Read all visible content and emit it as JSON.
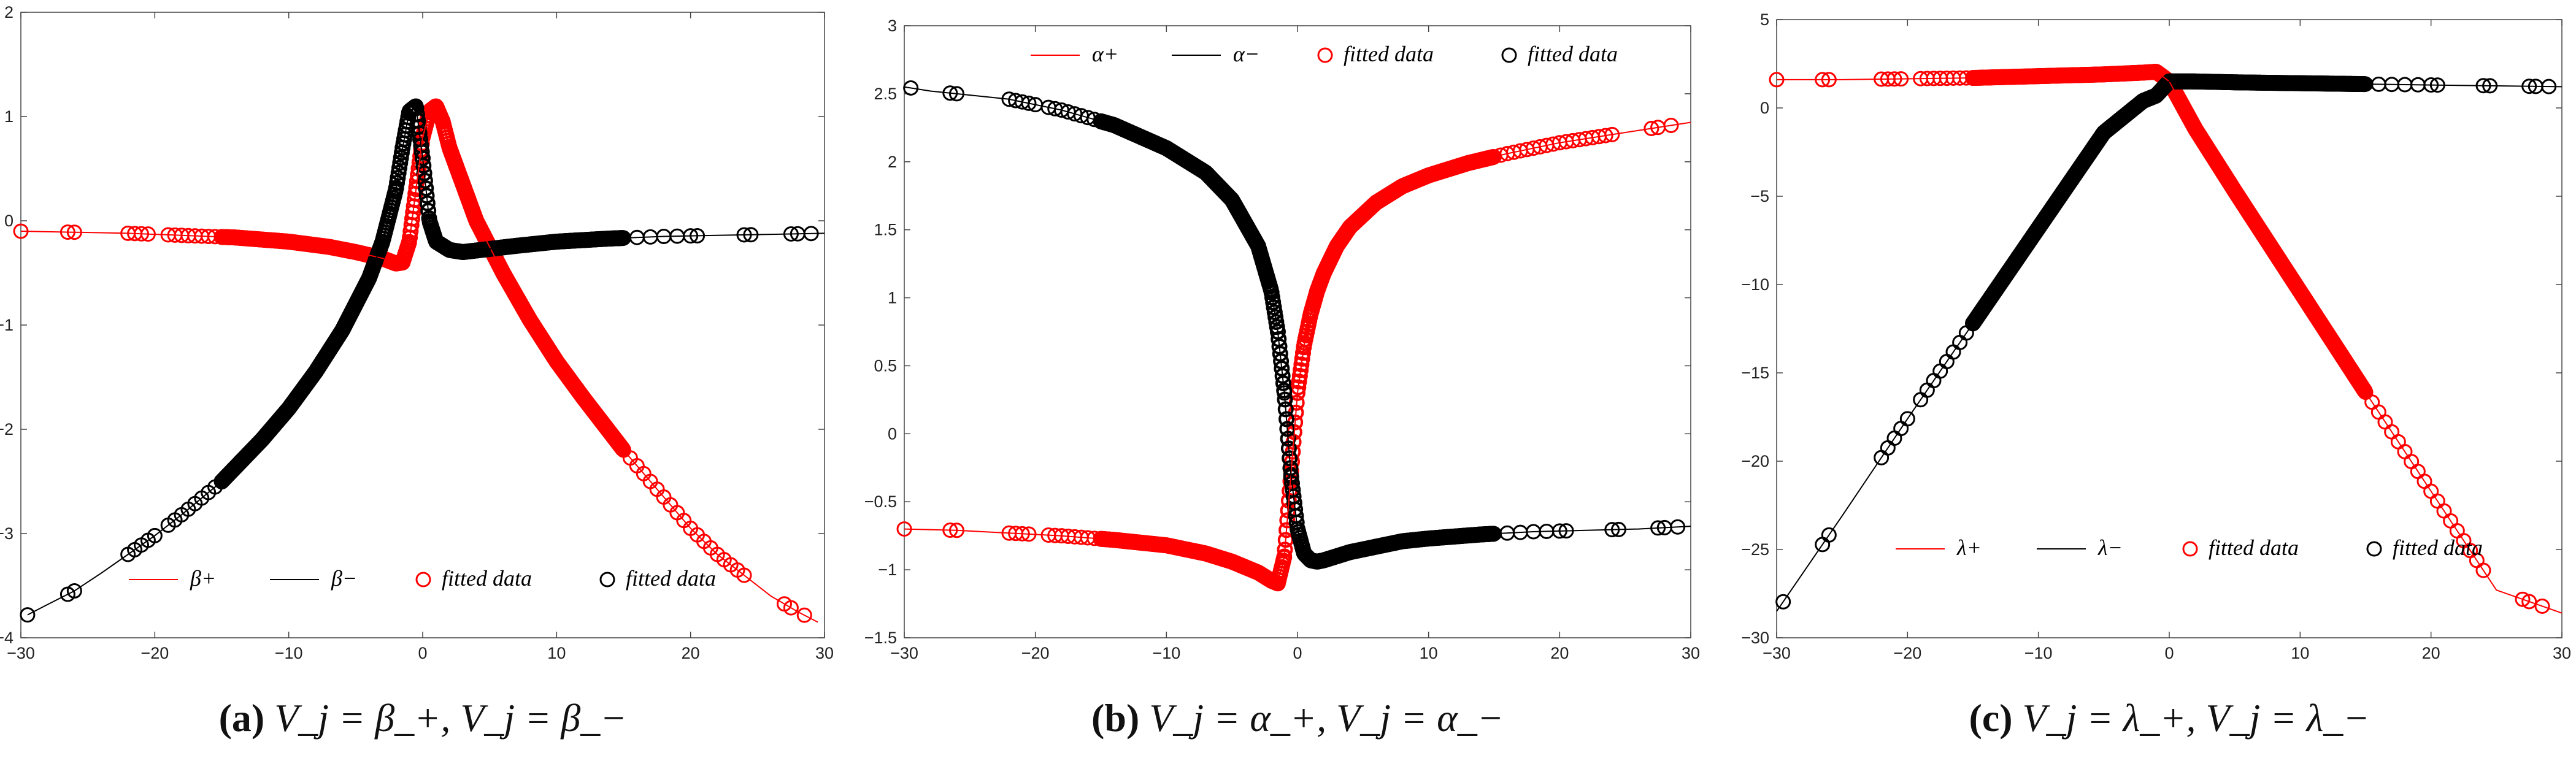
{
  "figure": {
    "panels": [
      {
        "caption_letter": "(a)",
        "caption_math": "V_j = β_+, V_j = β_−",
        "legend_labels": [
          "β+",
          "β−",
          "fitted data",
          "fitted data"
        ],
        "colors": {
          "plus": "#ff0000",
          "minus": "#000000"
        }
      },
      {
        "caption_letter": "(b)",
        "caption_math": "V_j = α_+, V_j = α_−",
        "legend_labels": [
          "α+",
          "α−",
          "fitted data",
          "fitted data"
        ],
        "colors": {
          "plus": "#ff0000",
          "minus": "#000000"
        }
      },
      {
        "caption_letter": "(c)",
        "caption_math": "V_j = λ_+, V_j = λ_−",
        "legend_labels": [
          "λ+",
          "λ−",
          "fitted data",
          "fitted data"
        ],
        "colors": {
          "plus": "#ff0000",
          "minus": "#000000"
        }
      }
    ]
  },
  "chart_data": [
    {
      "type": "line",
      "xlim": [
        -30,
        30
      ],
      "ylim": [
        -4,
        2
      ],
      "xticks": [
        -30,
        -20,
        -10,
        0,
        10,
        20,
        30
      ],
      "yticks": [
        -4,
        -3,
        -2,
        -1,
        0,
        1,
        2
      ],
      "legend_position": "bottom",
      "series": [
        {
          "name": "β+",
          "color": "#ff0000",
          "x": [
            -30,
            -26,
            -22,
            -18,
            -14,
            -10,
            -7,
            -5,
            -3,
            -2,
            -1.5,
            -1,
            -0.5,
            0,
            0.5,
            1,
            1.5,
            2,
            3,
            4,
            6,
            8,
            10,
            12,
            15,
            18,
            20,
            22,
            24,
            26,
            28,
            29.5
          ],
          "y": [
            -0.1,
            -0.11,
            -0.12,
            -0.14,
            -0.16,
            -0.2,
            -0.25,
            -0.3,
            -0.36,
            -0.41,
            -0.4,
            -0.2,
            0.3,
            0.8,
            1.05,
            1.1,
            0.95,
            0.7,
            0.35,
            0.0,
            -0.5,
            -0.95,
            -1.35,
            -1.7,
            -2.2,
            -2.65,
            -2.95,
            -3.2,
            -3.4,
            -3.6,
            -3.75,
            -3.85
          ]
        },
        {
          "name": "β−",
          "color": "#000000",
          "x": [
            -29.5,
            -28,
            -26,
            -24,
            -22,
            -20,
            -18,
            -15,
            -12,
            -10,
            -8,
            -6,
            -4,
            -3,
            -2,
            -1.5,
            -1,
            -0.5,
            0,
            0.5,
            1,
            2,
            3,
            5,
            7,
            10,
            14,
            18,
            22,
            26,
            30
          ],
          "y": [
            -3.78,
            -3.68,
            -3.55,
            -3.38,
            -3.2,
            -3.02,
            -2.82,
            -2.5,
            -2.1,
            -1.8,
            -1.45,
            -1.05,
            -0.55,
            -0.2,
            0.3,
            0.7,
            1.05,
            1.1,
            0.6,
            0.0,
            -0.2,
            -0.28,
            -0.3,
            -0.27,
            -0.24,
            -0.2,
            -0.17,
            -0.15,
            -0.14,
            -0.13,
            -0.12
          ]
        }
      ],
      "fitted_plus_x": [
        -30,
        -26.5,
        -26,
        -22,
        -21.5,
        -21,
        -20.5,
        -19,
        -18.5,
        -18,
        -17.5,
        -17,
        -16.5,
        -16,
        -15.5,
        -15,
        -14.5,
        -14,
        -13.5,
        -13,
        -12,
        -11,
        -10,
        -9,
        -8,
        -7,
        -6,
        -5,
        -4,
        -3,
        -2.5,
        -2,
        -1.5,
        -1,
        -0.5,
        0,
        0.5,
        1,
        1.5,
        2,
        2.5,
        3,
        3.5,
        4,
        5,
        6,
        7,
        8,
        9,
        10,
        11,
        12,
        13,
        14,
        15,
        15.5,
        16,
        16.5,
        17,
        17.5,
        18,
        18.5,
        19,
        19.5,
        20,
        20.5,
        21,
        21.5,
        22,
        22.5,
        23,
        23.5,
        24,
        27,
        27.5,
        28.5
      ],
      "fitted_minus_x": [
        -29.5,
        -26.5,
        -26,
        -22,
        -21.5,
        -21,
        -20.5,
        -20,
        -19,
        -18.5,
        -18,
        -17.5,
        -17,
        -16.5,
        -16,
        -15.5,
        -15,
        -14.5,
        -14,
        -13,
        -12,
        -11,
        -10,
        -9,
        -8,
        -7,
        -6,
        -5,
        -4,
        -3,
        -2.5,
        -2,
        -1.5,
        -1,
        -0.5,
        0,
        0.5,
        1,
        1.5,
        2,
        3,
        4,
        5,
        6,
        7,
        8,
        9,
        10,
        11,
        12,
        13,
        14,
        15,
        16,
        17,
        18,
        19,
        20,
        20.5,
        24,
        24.5,
        27.5,
        28,
        29
      ]
    },
    {
      "type": "line",
      "xlim": [
        -30,
        30
      ],
      "ylim": [
        -1.5,
        3
      ],
      "xticks": [
        -30,
        -20,
        -10,
        0,
        10,
        20,
        30
      ],
      "yticks": [
        -1.5,
        -1,
        -0.5,
        0,
        0.5,
        1,
        1.5,
        2,
        2.5,
        3
      ],
      "legend_position": "top",
      "series": [
        {
          "name": "α+",
          "color": "#ff0000",
          "x": [
            -30,
            -26,
            -22,
            -18,
            -14,
            -10,
            -7,
            -5,
            -3,
            -2,
            -1.5,
            -1,
            -0.5,
            0,
            0.5,
            1,
            1.5,
            2,
            3,
            4,
            6,
            8,
            10,
            13,
            16,
            20,
            24,
            28,
            30
          ],
          "y": [
            -0.7,
            -0.71,
            -0.73,
            -0.75,
            -0.78,
            -0.82,
            -0.88,
            -0.94,
            -1.02,
            -1.08,
            -1.1,
            -0.9,
            -0.3,
            0.3,
            0.65,
            0.88,
            1.05,
            1.18,
            1.38,
            1.52,
            1.7,
            1.82,
            1.9,
            1.99,
            2.06,
            2.14,
            2.2,
            2.26,
            2.29
          ]
        },
        {
          "name": "α−",
          "color": "#000000",
          "x": [
            -30,
            -28,
            -26,
            -22,
            -18,
            -14,
            -10,
            -7,
            -5,
            -3,
            -2,
            -1.5,
            -1,
            -0.5,
            0,
            0.5,
            1,
            1.5,
            2,
            3,
            4,
            6,
            8,
            10,
            14,
            18,
            22,
            26,
            30
          ],
          "y": [
            2.55,
            2.52,
            2.5,
            2.46,
            2.38,
            2.27,
            2.1,
            1.92,
            1.72,
            1.38,
            1.05,
            0.75,
            0.3,
            -0.3,
            -0.7,
            -0.88,
            -0.93,
            -0.94,
            -0.93,
            -0.9,
            -0.87,
            -0.83,
            -0.79,
            -0.77,
            -0.74,
            -0.72,
            -0.71,
            -0.7,
            -0.68
          ]
        }
      ],
      "fitted_plus_x": [
        -30,
        -26.5,
        -26,
        -22,
        -21.5,
        -21,
        -20.5,
        -19,
        -18.5,
        -18,
        -17.5,
        -17,
        -16.5,
        -16,
        -15.5,
        -15,
        -14.5,
        -14,
        -13.5,
        -13,
        -12,
        -11,
        -10,
        -9,
        -8,
        -7,
        -6,
        -5,
        -4,
        -3,
        -2.5,
        -2,
        -1.5,
        -1,
        -0.5,
        0,
        0.5,
        1,
        1.5,
        2,
        2.5,
        3,
        3.5,
        4,
        5,
        6,
        7,
        8,
        9,
        10,
        11,
        12,
        13,
        14,
        15,
        15.5,
        16,
        16.5,
        17,
        17.5,
        18,
        18.5,
        19,
        19.5,
        20,
        20.5,
        21,
        21.5,
        22,
        22.5,
        23,
        23.5,
        24,
        27,
        27.5,
        28.5
      ],
      "fitted_minus_x": [
        -29.5,
        -26.5,
        -26,
        -22,
        -21.5,
        -21,
        -20.5,
        -20,
        -19,
        -18.5,
        -18,
        -17.5,
        -17,
        -16.5,
        -16,
        -15.5,
        -15,
        -14.5,
        -14,
        -13,
        -12,
        -11,
        -10,
        -9,
        -8,
        -7,
        -6,
        -5,
        -4,
        -3,
        -2.5,
        -2,
        -1.5,
        -1,
        -0.5,
        0,
        0.5,
        1,
        1.5,
        2,
        3,
        4,
        5,
        6,
        7,
        8,
        9,
        10,
        11,
        12,
        13,
        14,
        15,
        16,
        17,
        18,
        19,
        20,
        20.5,
        24,
        24.5,
        27.5,
        28,
        29
      ]
    },
    {
      "type": "line",
      "xlim": [
        -30,
        30
      ],
      "ylim": [
        -30,
        5
      ],
      "xticks": [
        -30,
        -20,
        -10,
        0,
        10,
        20,
        30
      ],
      "yticks": [
        -30,
        -25,
        -20,
        -15,
        -10,
        -5,
        0,
        5
      ],
      "legend_position": "bottom",
      "series": [
        {
          "name": "λ+",
          "color": "#ff0000",
          "x": [
            -30,
            -25,
            -20,
            -15,
            -10,
            -5,
            -2,
            -1,
            0,
            2,
            5,
            10,
            15,
            20,
            25,
            30
          ],
          "y": [
            1.6,
            1.6,
            1.65,
            1.7,
            1.8,
            1.9,
            2.0,
            2.05,
            1.5,
            -1.2,
            -4.7,
            -10.4,
            -16.1,
            -21.7,
            -27.3,
            -28.6
          ]
        },
        {
          "name": "λ−",
          "color": "#000000",
          "x": [
            -30,
            -25,
            -20,
            -15,
            -10,
            -5,
            -2,
            -1,
            0,
            2,
            5,
            10,
            15,
            20,
            25,
            30
          ],
          "y": [
            -28.5,
            -23.1,
            -17.6,
            -12.2,
            -6.8,
            -1.4,
            0.4,
            0.7,
            1.5,
            1.5,
            1.45,
            1.4,
            1.35,
            1.3,
            1.25,
            1.2
          ]
        }
      ],
      "fitted_plus_x": [
        -30,
        -26.5,
        -26,
        -22,
        -21.5,
        -21,
        -20.5,
        -19,
        -18.5,
        -18,
        -17.5,
        -17,
        -16.5,
        -16,
        -15.5,
        -15,
        -14.5,
        -14,
        -13.5,
        -13,
        -12,
        -11,
        -10,
        -9,
        -8,
        -7,
        -6,
        -5,
        -4,
        -3,
        -2.5,
        -2,
        -1.5,
        -1,
        -0.5,
        0,
        0.5,
        1,
        1.5,
        2,
        2.5,
        3,
        3.5,
        4,
        5,
        6,
        7,
        8,
        9,
        10,
        11,
        12,
        13,
        14,
        15,
        15.5,
        16,
        16.5,
        17,
        17.5,
        18,
        18.5,
        19,
        19.5,
        20,
        20.5,
        21,
        21.5,
        22,
        22.5,
        23,
        23.5,
        24,
        27,
        27.5,
        28.5
      ],
      "fitted_minus_x": [
        -29.5,
        -26.5,
        -26,
        -22,
        -21.5,
        -21,
        -20.5,
        -20,
        -19,
        -18.5,
        -18,
        -17.5,
        -17,
        -16.5,
        -16,
        -15.5,
        -15,
        -14.5,
        -14,
        -13,
        -12,
        -11,
        -10,
        -9,
        -8,
        -7,
        -6,
        -5,
        -4,
        -3,
        -2.5,
        -2,
        -1.5,
        -1,
        -0.5,
        0,
        0.5,
        1,
        1.5,
        2,
        3,
        4,
        5,
        6,
        7,
        8,
        9,
        10,
        11,
        12,
        13,
        14,
        15,
        16,
        17,
        18,
        19,
        20,
        20.5,
        24,
        24.5,
        27.5,
        28,
        29
      ]
    }
  ]
}
